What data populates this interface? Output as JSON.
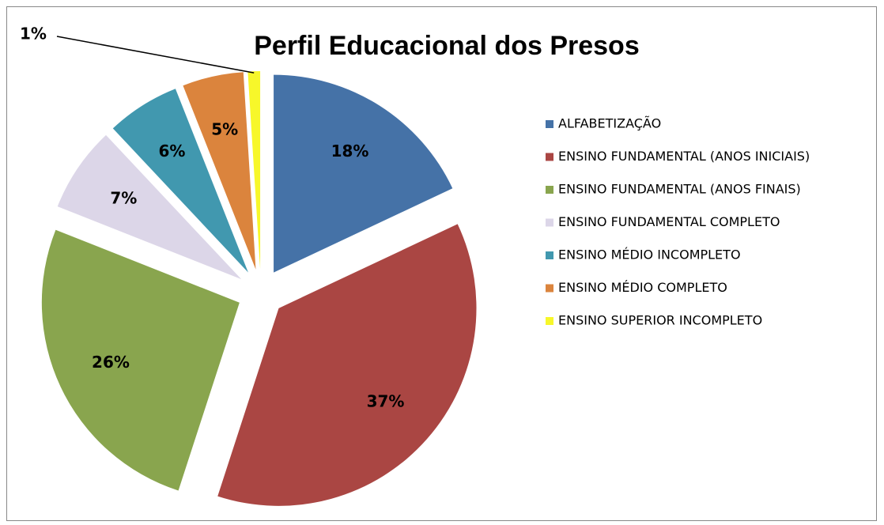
{
  "chart_data": {
    "type": "pie",
    "title": "Perfil Educacional dos Presos",
    "categories": [
      "ALFABETIZAÇÃO",
      "ENSINO FUNDAMENTAL (ANOS INICIAIS)",
      "ENSINO FUNDAMENTAL (ANOS FINAIS)",
      "ENSINO FUNDAMENTAL COMPLETO",
      "ENSINO MÉDIO INCOMPLETO",
      "ENSINO MÉDIO COMPLETO",
      "ENSINO SUPERIOR INCOMPLETO"
    ],
    "values": [
      18,
      37,
      26,
      7,
      6,
      5,
      1
    ],
    "value_labels": [
      "18%",
      "37%",
      "26%",
      "7%",
      "6%",
      "5%",
      "1%"
    ],
    "colors": [
      "#4572a7",
      "#aa4643",
      "#89a54e",
      "#dcd6e8",
      "#4198af",
      "#db843d",
      "#f7f72a"
    ],
    "legend": "right"
  }
}
